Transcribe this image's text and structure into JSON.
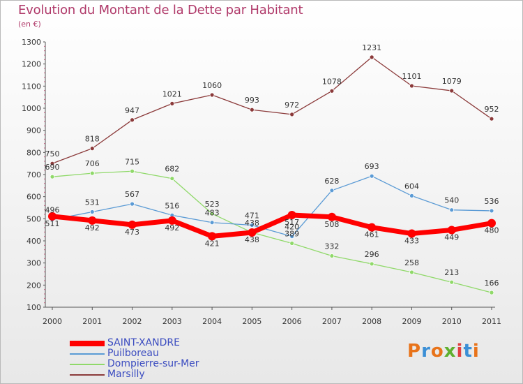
{
  "title": "Evolution du Montant de la Dette par Habitant",
  "subtitle": "(en €)",
  "logo": {
    "text": "Proxiti"
  },
  "chart_data": {
    "type": "line",
    "title": "Evolution du Montant de la Dette par Habitant",
    "subtitle": "(en €)",
    "xlabel": "",
    "ylabel": "",
    "ylim": [
      100,
      1300
    ],
    "yticks": [
      100,
      200,
      300,
      400,
      500,
      600,
      700,
      800,
      900,
      1000,
      1100,
      1200,
      1300
    ],
    "grid": false,
    "legend_position": "bottom-left",
    "x": [
      "2000",
      "2001",
      "2002",
      "2003",
      "2004",
      "2005",
      "2006",
      "2007",
      "2008",
      "2009",
      "2010",
      "2011"
    ],
    "series": [
      {
        "name": "SAINT-XANDRE",
        "color": "#ff0000",
        "values": [
          511,
          492,
          473,
          492,
          421,
          438,
          517,
          508,
          461,
          433,
          449,
          480
        ]
      },
      {
        "name": "Puilboreau",
        "color": "#5b9bd5",
        "values": [
          496,
          531,
          567,
          516,
          483,
          471,
          420,
          628,
          693,
          604,
          540,
          536
        ]
      },
      {
        "name": "Dompierre-sur-Mer",
        "color": "#90d96a",
        "values": [
          690,
          706,
          715,
          682,
          523,
          438,
          389,
          332,
          296,
          258,
          213,
          166
        ]
      },
      {
        "name": "Marsilly",
        "color": "#8b3a3a",
        "values": [
          750,
          818,
          947,
          1021,
          1060,
          993,
          972,
          1078,
          1231,
          1101,
          1079,
          952
        ]
      }
    ]
  }
}
